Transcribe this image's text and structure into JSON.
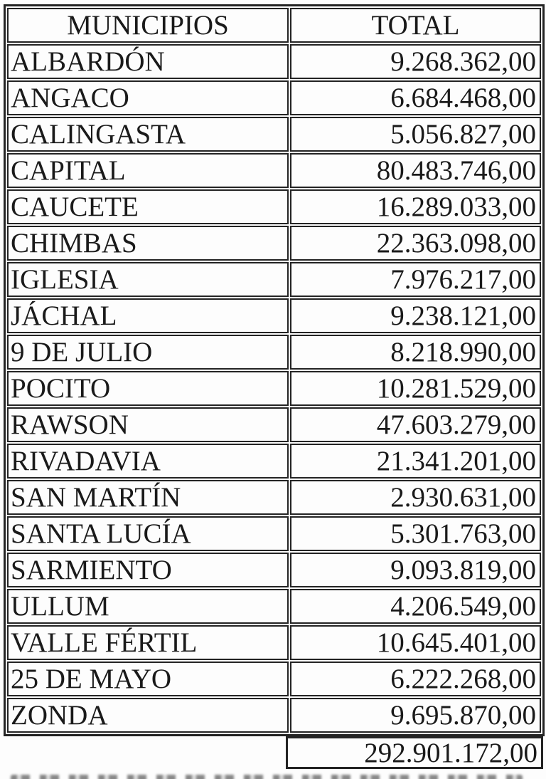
{
  "table": {
    "headers": {
      "municipio": "MUNICIPIOS",
      "total": "TOTAL"
    },
    "rows": [
      {
        "municipio": "ALBARDÓN",
        "total": "9.268.362,00"
      },
      {
        "municipio": "ANGACO",
        "total": "6.684.468,00"
      },
      {
        "municipio": "CALINGASTA",
        "total": "5.056.827,00"
      },
      {
        "municipio": "CAPITAL",
        "total": "80.483.746,00"
      },
      {
        "municipio": "CAUCETE",
        "total": "16.289.033,00"
      },
      {
        "municipio": "CHIMBAS",
        "total": "22.363.098,00"
      },
      {
        "municipio": "IGLESIA",
        "total": "7.976.217,00"
      },
      {
        "municipio": "JÁCHAL",
        "total": "9.238.121,00"
      },
      {
        "municipio": "9 DE JULIO",
        "total": "8.218.990,00"
      },
      {
        "municipio": "POCITO",
        "total": "10.281.529,00"
      },
      {
        "municipio": "RAWSON",
        "total": "47.603.279,00"
      },
      {
        "municipio": "RIVADAVIA",
        "total": "21.341.201,00"
      },
      {
        "municipio": "SAN MARTÍN",
        "total": "2.930.631,00"
      },
      {
        "municipio": "SANTA LUCÍA",
        "total": "5.301.763,00"
      },
      {
        "municipio": "SARMIENTO",
        "total": "9.093.819,00"
      },
      {
        "municipio": "ULLUM",
        "total": "4.206.549,00"
      },
      {
        "municipio": "VALLE FÉRTIL",
        "total": "10.645.401,00"
      },
      {
        "municipio": "25 DE MAYO",
        "total": "6.222.268,00"
      },
      {
        "municipio": "ZONDA",
        "total": "9.695.870,00"
      }
    ],
    "grand_total": "292.901.172,00"
  },
  "colors": {
    "border": "#242424",
    "text": "#1a1a1a",
    "background": "#fdfdfd"
  }
}
